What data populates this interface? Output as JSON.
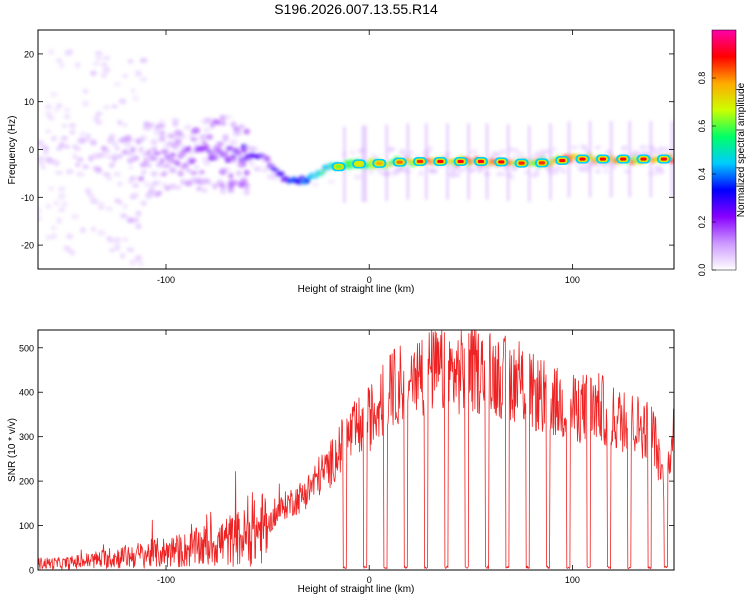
{
  "title": "S196.2026.007.13.55.R14",
  "colors": {
    "snr_line": "#ee2222",
    "frame": "#000000"
  },
  "chart_data": [
    {
      "type": "heatmap",
      "xlabel": "Height of straight line (km)",
      "ylabel": "Frequency (Hz)",
      "xlim": [
        -163,
        150
      ],
      "ylim": [
        -25,
        25
      ],
      "xticks": [
        -100,
        0,
        100
      ],
      "yticks": [
        -20,
        -10,
        0,
        10,
        20
      ],
      "colorbar": {
        "label": "Normalized spectral amplitude",
        "range": [
          0,
          1
        ],
        "ticks": [
          0.0,
          0.2,
          0.4,
          0.6,
          0.8
        ],
        "colors": [
          "#ffffff",
          "#cc99ff",
          "#8800ff",
          "#0000ff",
          "#00ccff",
          "#00ff66",
          "#ccff00",
          "#ffaa00",
          "#ff0000",
          "#ff00aa"
        ]
      },
      "ridge": {
        "x": [
          -163,
          -140,
          -120,
          -100,
          -80,
          -60,
          -50,
          -45,
          -38,
          -30,
          -20,
          -10,
          0,
          20,
          40,
          60,
          80,
          100,
          120,
          150
        ],
        "frequency": [
          0,
          -1,
          -2,
          -2,
          -1,
          -1,
          -2,
          -5,
          -7,
          -6,
          -4,
          -3,
          -3,
          -2.5,
          -2.5,
          -2.5,
          -3,
          -2,
          -2,
          -2
        ],
        "amplitude": [
          0.1,
          0.12,
          0.15,
          0.2,
          0.25,
          0.3,
          0.25,
          0.3,
          0.4,
          0.45,
          0.55,
          0.6,
          0.7,
          0.8,
          0.85,
          0.85,
          0.8,
          0.85,
          0.85,
          0.85
        ]
      }
    },
    {
      "type": "line",
      "xlabel": "Height of straight line (km)",
      "ylabel": "SNR (10 * v/v)",
      "xlim": [
        -163,
        150
      ],
      "ylim": [
        0,
        540
      ],
      "xticks": [
        -100,
        0,
        100
      ],
      "yticks": [
        0,
        100,
        200,
        300,
        400,
        500
      ],
      "series": [
        {
          "x": [
            -163,
            -150,
            -140,
            -130,
            -120,
            -110,
            -100,
            -90,
            -80,
            -70,
            -60,
            -50,
            -45,
            -40,
            -35,
            -30,
            -25,
            -20,
            -15,
            -10,
            -5,
            0,
            5,
            10,
            15,
            20,
            25,
            30,
            40,
            50,
            60,
            70,
            80,
            90,
            100,
            110,
            115,
            120,
            130,
            140,
            145,
            148,
            150
          ],
          "y": [
            15,
            15,
            20,
            25,
            30,
            35,
            40,
            45,
            55,
            65,
            75,
            100,
            130,
            150,
            160,
            180,
            210,
            230,
            270,
            300,
            320,
            340,
            370,
            400,
            420,
            430,
            440,
            450,
            440,
            450,
            440,
            430,
            400,
            380,
            360,
            370,
            360,
            340,
            330,
            310,
            180,
            260,
            340
          ]
        }
      ],
      "dropouts_x": [
        -12,
        -2,
        8,
        18,
        28,
        38,
        48,
        58,
        68,
        78,
        88,
        98,
        108,
        118,
        128,
        138,
        146
      ]
    }
  ]
}
